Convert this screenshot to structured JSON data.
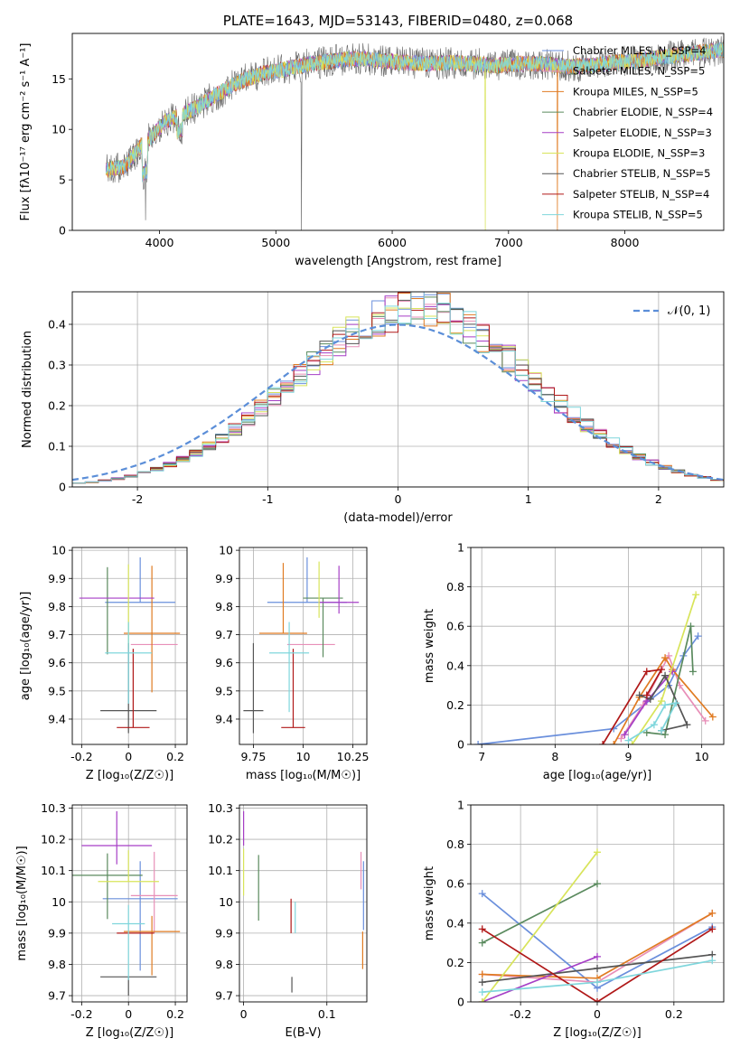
{
  "colors": [
    "#6a8fdc",
    "#e88fb8",
    "#e07b22",
    "#5a8a5e",
    "#a63fc6",
    "#d8e45a",
    "#555555",
    "#b01818",
    "#7fd6dc"
  ],
  "chart_data": [
    {
      "id": "spectrum",
      "type": "line",
      "title": "PLATE=1643, MJD=53143, FIBERID=0480, z=0.068",
      "xlabel": "wavelength [Angstrom, rest frame]",
      "ylabel": "Flux [fλ10⁻¹⁷ erg cm⁻² s⁻¹ A⁻¹]",
      "xlim": [
        3250,
        8850
      ],
      "ylim": [
        0,
        19.5
      ],
      "xticks": [
        4000,
        5000,
        6000,
        7000,
        8000
      ],
      "yticks": [
        0,
        5,
        10,
        15
      ],
      "legend_loc": "upper right",
      "series": [
        {
          "name": "Chabrier MILES, N_SSP=4"
        },
        {
          "name": "Salpeter MILES, N_SSP=5"
        },
        {
          "name": "Kroupa MILES, N_SSP=5"
        },
        {
          "name": "Chabrier ELODIE, N_SSP=4"
        },
        {
          "name": "Salpeter ELODIE, N_SSP=3"
        },
        {
          "name": "Kroupa ELODIE, N_SSP=3"
        },
        {
          "name": "Chabrier STELIB, N_SSP=5"
        },
        {
          "name": "Salpeter STELIB, N_SSP=4"
        },
        {
          "name": "Kroupa STELIB, N_SSP=5"
        }
      ],
      "continuum": {
        "x": [
          3550,
          3700,
          3850,
          3950,
          4050,
          4200,
          4350,
          4500,
          4700,
          4900,
          5100,
          5300,
          5500,
          5700,
          5900,
          6100,
          6300,
          6500,
          6700,
          6900,
          7100,
          7300,
          7500,
          7700,
          7900,
          8100,
          8300,
          8500,
          8700,
          8850
        ],
        "y": [
          6.0,
          6.3,
          8.5,
          9.5,
          10.8,
          11.5,
          12.4,
          13.5,
          14.8,
          15.6,
          16.0,
          16.5,
          16.8,
          17.0,
          16.8,
          16.6,
          16.5,
          16.6,
          16.5,
          16.3,
          16.5,
          16.5,
          16.2,
          16.3,
          16.6,
          16.8,
          17.1,
          17.4,
          17.7,
          17.9
        ]
      }
    },
    {
      "id": "residuals",
      "type": "histogram",
      "xlabel": "(data-model)/error",
      "ylabel": "Normed distribution",
      "xlim": [
        -2.5,
        2.5
      ],
      "ylim": [
        0,
        0.48
      ],
      "xticks": [
        -2,
        -1,
        0,
        1,
        2
      ],
      "yticks": [
        0.0,
        0.1,
        0.2,
        0.3,
        0.4
      ],
      "grid": true,
      "legend_loc": "upper right",
      "reference_label": "𝒩(0, 1)",
      "bins": {
        "start": -2.5,
        "width": 0.1
      }
    },
    {
      "id": "age-vs-Z",
      "type": "errorbar",
      "xlabel": "Z [log₁₀(Z/Z☉)]",
      "ylabel": "age  [log₁₀(age/yr)]",
      "xlim": [
        -0.24,
        0.25
      ],
      "ylim": [
        9.31,
        10.01
      ],
      "xticks": [
        -0.2,
        0.0,
        0.2
      ],
      "yticks": [
        9.4,
        9.5,
        9.6,
        9.7,
        9.8,
        9.9,
        10.0
      ],
      "grid": true,
      "points": [
        {
          "x": 0.05,
          "xerr": 0.15,
          "y": 9.815,
          "yerr": [
            0.0,
            0.16
          ]
        },
        {
          "x": 0.11,
          "xerr": 0.1,
          "y": 9.665,
          "yerr": [
            0.0,
            0.0
          ]
        },
        {
          "x": 0.1,
          "xerr": 0.12,
          "y": 9.705,
          "yerr": [
            0.21,
            0.24
          ]
        },
        {
          "x": -0.09,
          "xerr": 0.0,
          "y": 9.83,
          "yerr": [
            0.2,
            0.11
          ]
        },
        {
          "x": -0.05,
          "xerr": 0.16,
          "y": 9.83,
          "yerr": [
            0.0,
            0.0
          ]
        },
        {
          "x": 0.0,
          "xerr": 0.0,
          "y": 9.82,
          "yerr": [
            0.17,
            0.13
          ]
        },
        {
          "x": 0.0,
          "xerr": 0.12,
          "y": 9.43,
          "yerr": [
            0.08,
            0.24
          ]
        },
        {
          "x": 0.02,
          "xerr": 0.07,
          "y": 9.37,
          "yerr": [
            0.0,
            0.28
          ]
        },
        {
          "x": 0.0,
          "xerr": 0.1,
          "y": 9.635,
          "yerr": [
            0.18,
            0.11
          ]
        }
      ]
    },
    {
      "id": "age-vs-mass",
      "type": "errorbar",
      "xlabel": "mass [log₁₀(M/M☉)]",
      "ylabel": "",
      "xlim": [
        9.68,
        10.32
      ],
      "ylim": [
        9.31,
        10.01
      ],
      "xticks": [
        9.75,
        10.0,
        10.25
      ],
      "yticks": [
        9.4,
        9.5,
        9.6,
        9.7,
        9.8,
        9.9,
        10.0
      ],
      "grid": true,
      "points": [
        {
          "x": 10.02,
          "xerr": 0.2,
          "y": 9.815,
          "yerr": [
            0.0,
            0.16
          ]
        },
        {
          "x": 10.04,
          "xerr": 0.12,
          "y": 9.665,
          "yerr": [
            0.0,
            0.0
          ]
        },
        {
          "x": 9.9,
          "xerr": 0.12,
          "y": 9.705,
          "yerr": [
            0.0,
            0.25
          ]
        },
        {
          "x": 10.1,
          "xerr": 0.1,
          "y": 9.83,
          "yerr": [
            0.21,
            0.0
          ]
        },
        {
          "x": 10.18,
          "xerr": 0.1,
          "y": 9.815,
          "yerr": [
            0.04,
            0.13
          ]
        },
        {
          "x": 10.08,
          "xerr": 0.0,
          "y": 9.86,
          "yerr": [
            0.1,
            0.1
          ]
        },
        {
          "x": 9.75,
          "xerr": 0.05,
          "y": 9.43,
          "yerr": [
            0.08,
            0.24
          ]
        },
        {
          "x": 9.95,
          "xerr": 0.06,
          "y": 9.37,
          "yerr": [
            0.0,
            0.28
          ]
        },
        {
          "x": 9.93,
          "xerr": 0.1,
          "y": 9.635,
          "yerr": [
            0.21,
            0.11
          ]
        }
      ]
    },
    {
      "id": "massweight-vs-age",
      "type": "line",
      "xlabel": "age  [log₁₀(age/yr)]",
      "ylabel": "mass weight",
      "xlim": [
        6.85,
        10.3
      ],
      "ylim": [
        0,
        1
      ],
      "xticks": [
        7,
        8,
        9,
        10
      ],
      "yticks": [
        0.0,
        0.2,
        0.4,
        0.6,
        0.8,
        1.0
      ],
      "grid": true,
      "series": [
        {
          "x": [
            6.95,
            8.8,
            9.55,
            9.75,
            9.95
          ],
          "y": [
            0.0,
            0.08,
            0.3,
            0.45,
            0.55
          ]
        },
        {
          "x": [
            8.9,
            9.2,
            9.55,
            9.7,
            10.05
          ],
          "y": [
            0.03,
            0.2,
            0.45,
            0.3,
            0.12
          ]
        },
        {
          "x": [
            8.8,
            9.15,
            9.5,
            9.6,
            10.15
          ],
          "y": [
            0.0,
            0.24,
            0.44,
            0.38,
            0.14
          ]
        },
        {
          "x": [
            9.25,
            9.5,
            9.85,
            9.88
          ],
          "y": [
            0.06,
            0.05,
            0.6,
            0.37
          ]
        },
        {
          "x": [
            8.95,
            9.25,
            9.6
          ],
          "y": [
            0.05,
            0.22,
            0.37
          ]
        },
        {
          "x": [
            9.05,
            9.45,
            9.92
          ],
          "y": [
            0.0,
            0.22,
            0.76
          ]
        },
        {
          "x": [
            9.15,
            9.3,
            9.5,
            9.8,
            9.45
          ],
          "y": [
            0.25,
            0.23,
            0.35,
            0.1,
            0.07
          ]
        },
        {
          "x": [
            8.65,
            9.25,
            9.45,
            9.25
          ],
          "y": [
            0.0,
            0.37,
            0.38,
            0.25
          ]
        },
        {
          "x": [
            9.0,
            9.35,
            9.5,
            9.65,
            9.45
          ],
          "y": [
            0.02,
            0.1,
            0.2,
            0.21,
            0.07
          ]
        }
      ]
    },
    {
      "id": "mass-vs-Z",
      "type": "errorbar",
      "xlabel": "Z [log₁₀(Z/Z☉)]",
      "ylabel": "mass [log₁₀(M/M☉)]",
      "xlim": [
        -0.24,
        0.25
      ],
      "ylim": [
        9.68,
        10.31
      ],
      "xticks": [
        -0.2,
        0.0,
        0.2
      ],
      "yticks": [
        9.7,
        9.8,
        9.9,
        10.0,
        10.1,
        10.2,
        10.3
      ],
      "grid": true,
      "points": [
        {
          "x": 0.05,
          "xerr": 0.16,
          "y": 10.01,
          "yerr": [
            0.23,
            0.12
          ]
        },
        {
          "x": 0.11,
          "xerr": 0.1,
          "y": 10.02,
          "yerr": [
            0.12,
            0.14
          ]
        },
        {
          "x": 0.1,
          "xerr": 0.12,
          "y": 9.905,
          "yerr": [
            0.14,
            0.05
          ]
        },
        {
          "x": -0.09,
          "xerr": 0.15,
          "y": 10.085,
          "yerr": [
            0.14,
            0.07
          ]
        },
        {
          "x": -0.05,
          "xerr": 0.15,
          "y": 10.18,
          "yerr": [
            0.06,
            0.11
          ]
        },
        {
          "x": 0.0,
          "xerr": 0.13,
          "y": 10.065,
          "yerr": [
            0.0,
            0.1
          ]
        },
        {
          "x": 0.0,
          "xerr": 0.12,
          "y": 9.76,
          "yerr": [
            0.06,
            0.0
          ]
        },
        {
          "x": 0.03,
          "xerr": 0.08,
          "y": 9.9,
          "yerr": [
            0.0,
            0.0
          ]
        },
        {
          "x": 0.0,
          "xerr": 0.07,
          "y": 9.93,
          "yerr": [
            0.18,
            0.06
          ]
        }
      ]
    },
    {
      "id": "mass-vs-EBV",
      "type": "errorbar",
      "xlabel": "E(B-V)",
      "ylabel": "",
      "xlim": [
        -0.005,
        0.148
      ],
      "ylim": [
        9.68,
        10.31
      ],
      "xticks": [
        0.0,
        0.1
      ],
      "yticks": [
        9.7,
        9.8,
        9.9,
        10.0,
        10.1,
        10.2,
        10.3
      ],
      "grid": true,
      "points": [
        {
          "x": 0.144,
          "xerr": 0.0,
          "y": 10.02,
          "yerr": [
            0.11,
            0.11
          ]
        },
        {
          "x": 0.141,
          "xerr": 0.0,
          "y": 10.04,
          "yerr": [
            0.0,
            0.12
          ]
        },
        {
          "x": 0.143,
          "xerr": 0.0,
          "y": 9.905,
          "yerr": [
            0.12,
            0.0
          ]
        },
        {
          "x": 0.018,
          "xerr": 0.0,
          "y": 10.05,
          "yerr": [
            0.11,
            0.1
          ]
        },
        {
          "x": 0.0,
          "xerr": 0.0,
          "y": 10.18,
          "yerr": [
            0.0,
            0.11
          ]
        },
        {
          "x": 0.0,
          "xerr": 0.0,
          "y": 10.1,
          "yerr": [
            0.08,
            0.07
          ]
        },
        {
          "x": 0.058,
          "xerr": 0.0,
          "y": 9.76,
          "yerr": [
            0.05,
            0.0
          ]
        },
        {
          "x": 0.057,
          "xerr": 0.0,
          "y": 9.9,
          "yerr": [
            0.0,
            0.11
          ]
        },
        {
          "x": 0.062,
          "xerr": 0.0,
          "y": 9.9,
          "yerr": [
            0.0,
            0.1
          ]
        }
      ]
    },
    {
      "id": "massweight-vs-Z",
      "type": "line",
      "xlabel": "Z [log₁₀(Z/Z☉)]",
      "ylabel": "mass weight",
      "xlim": [
        -0.33,
        0.33
      ],
      "ylim": [
        0,
        1
      ],
      "xticks": [
        -0.2,
        0.0,
        0.2
      ],
      "yticks": [
        0.0,
        0.2,
        0.4,
        0.6,
        0.8,
        1.0
      ],
      "grid": true,
      "series": [
        {
          "x": [
            -0.3,
            0.0,
            0.3
          ],
          "y": [
            0.55,
            0.07,
            0.38
          ]
        },
        {
          "x": [
            -0.3,
            0.0,
            0.3
          ],
          "y": [
            0.14,
            0.1,
            0.45
          ]
        },
        {
          "x": [
            -0.3,
            0.0,
            0.3
          ],
          "y": [
            0.14,
            0.12,
            0.45
          ]
        },
        {
          "x": [
            -0.3,
            0.0
          ],
          "y": [
            0.3,
            0.6
          ]
        },
        {
          "x": [
            -0.3,
            0.0
          ],
          "y": [
            0.0,
            0.23
          ]
        },
        {
          "x": [
            -0.3,
            0.0
          ],
          "y": [
            0.0,
            0.76
          ]
        },
        {
          "x": [
            -0.3,
            0.0,
            0.3
          ],
          "y": [
            0.1,
            0.17,
            0.24
          ]
        },
        {
          "x": [
            -0.3,
            0.0,
            0.3
          ],
          "y": [
            0.37,
            0.0,
            0.37
          ]
        },
        {
          "x": [
            -0.3,
            0.0,
            0.3
          ],
          "y": [
            0.05,
            0.1,
            0.21
          ]
        }
      ]
    }
  ]
}
